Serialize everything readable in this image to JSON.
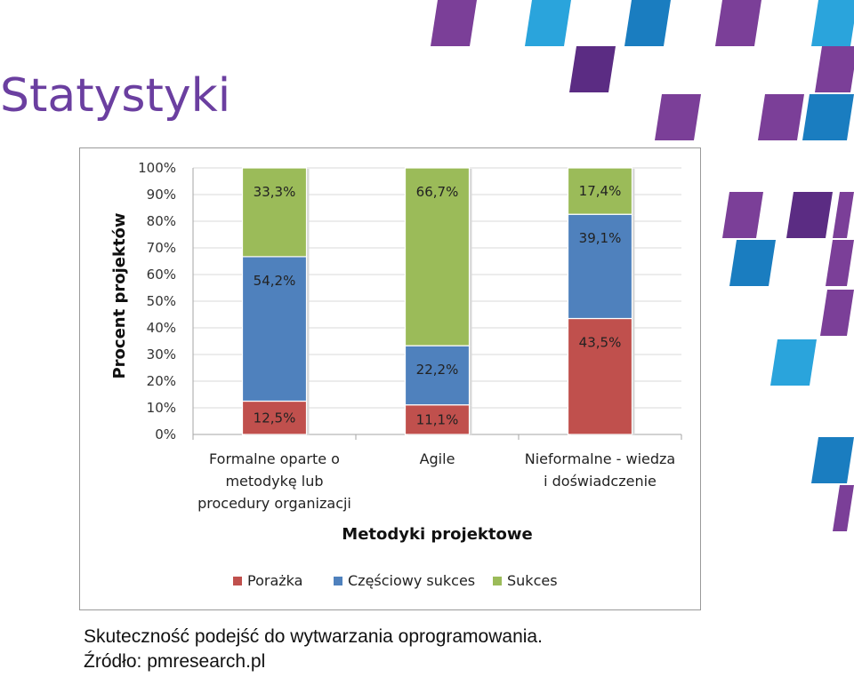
{
  "page": {
    "title": "Statystyki",
    "caption_line1": "Skuteczność podejść do wytwarzania oprogramowania.",
    "caption_line2": "Źródło: pmresearch.pl"
  },
  "colors": {
    "title": "#6b3fa0",
    "porazka": "#c0504d",
    "czesciowy": "#4f81bd",
    "sukces": "#9bbb59",
    "deco_purple": "#7b3f98",
    "deco_dark_purple": "#5b2c83",
    "deco_blue": "#2aa4dc",
    "deco_dark_blue": "#1a7dc0"
  },
  "chart_data": {
    "type": "bar",
    "stacked": true,
    "categories": [
      [
        "Formalne oparte o",
        "metodykę lub",
        "procedury organizacji"
      ],
      [
        "Agile"
      ],
      [
        "Nieformalne - wiedza",
        "i doświadczenie"
      ]
    ],
    "series": [
      {
        "name": "Porażka",
        "color": "#c0504d",
        "values": [
          12.5,
          11.1,
          43.5
        ],
        "labels": [
          "12,5%",
          "11,1%",
          "43,5%"
        ]
      },
      {
        "name": "Częściowy sukces",
        "color": "#4f81bd",
        "values": [
          54.2,
          22.2,
          39.1
        ],
        "labels": [
          "54,2%",
          "22,2%",
          "39,1%"
        ]
      },
      {
        "name": "Sukces",
        "color": "#9bbb59",
        "values": [
          33.3,
          66.7,
          17.4
        ],
        "labels": [
          "33,3%",
          "66,7%",
          "17,4%"
        ]
      }
    ],
    "xlabel": "Metodyki projektowe",
    "ylabel": "Procent projektów",
    "ylim": [
      0,
      100
    ],
    "yticks": [
      "0%",
      "10%",
      "20%",
      "30%",
      "40%",
      "50%",
      "60%",
      "70%",
      "80%",
      "90%",
      "100%"
    ],
    "grid": true,
    "legend_position": "bottom"
  }
}
